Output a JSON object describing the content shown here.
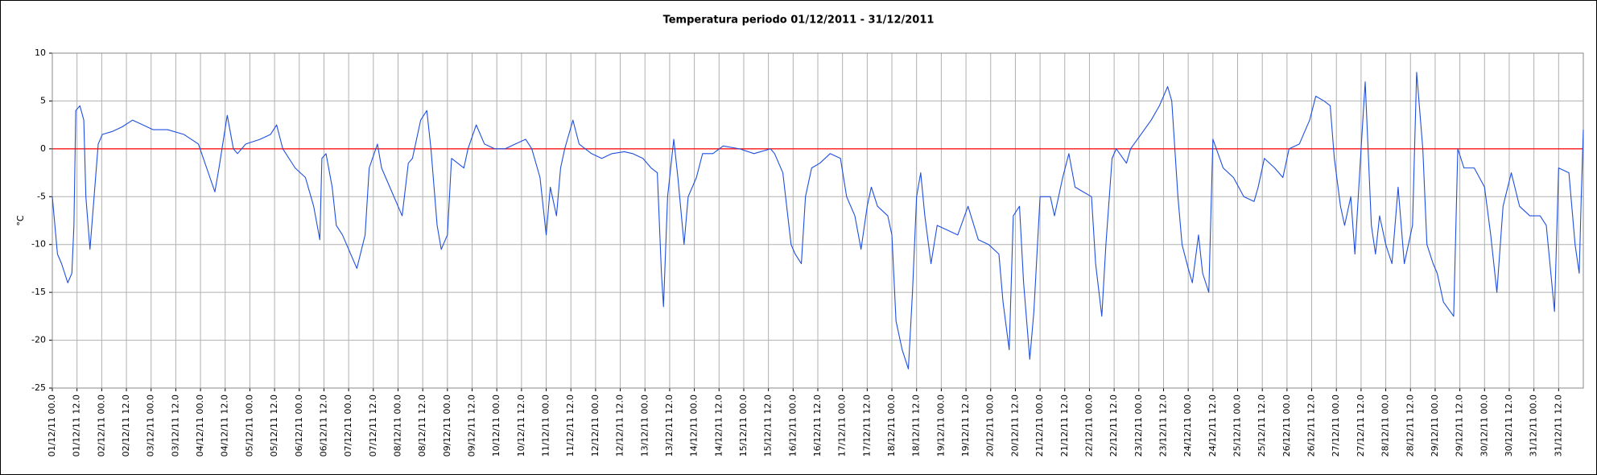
{
  "chart_data": {
    "type": "line",
    "title": "Temperatura periodo 01/12/2011 - 31/12/2011",
    "y_label": "°C",
    "color": "#1f4fe0",
    "grid": true,
    "hline": {
      "value": 0,
      "color": "#ff0000"
    },
    "xlim": [
      0,
      744
    ],
    "ylim": [
      -25,
      10
    ],
    "yticks": [
      -25,
      -20,
      -15,
      -10,
      -5,
      0,
      5,
      10
    ],
    "xticks": [
      {
        "value": 0,
        "label": "01/12/11 00.0"
      },
      {
        "value": 12,
        "label": "01/12/11 12.0"
      },
      {
        "value": 24,
        "label": "02/12/11 00.0"
      },
      {
        "value": 36,
        "label": "02/12/11 12.0"
      },
      {
        "value": 48,
        "label": "03/12/11 00.0"
      },
      {
        "value": 60,
        "label": "03/12/11 12.0"
      },
      {
        "value": 72,
        "label": "04/12/11 00.0"
      },
      {
        "value": 84,
        "label": "04/12/11 12.0"
      },
      {
        "value": 96,
        "label": "05/12/11 00.0"
      },
      {
        "value": 108,
        "label": "05/12/11 12.0"
      },
      {
        "value": 120,
        "label": "06/12/11 00.0"
      },
      {
        "value": 132,
        "label": "06/12/11 12.0"
      },
      {
        "value": 144,
        "label": "07/12/11 00.0"
      },
      {
        "value": 156,
        "label": "07/12/11 12.0"
      },
      {
        "value": 168,
        "label": "08/12/11 00.0"
      },
      {
        "value": 180,
        "label": "08/12/11 12.0"
      },
      {
        "value": 192,
        "label": "09/12/11 00.0"
      },
      {
        "value": 204,
        "label": "09/12/11 12.0"
      },
      {
        "value": 216,
        "label": "10/12/11 00.0"
      },
      {
        "value": 228,
        "label": "10/12/11 12.0"
      },
      {
        "value": 240,
        "label": "11/12/11 00.0"
      },
      {
        "value": 252,
        "label": "11/12/11 12.0"
      },
      {
        "value": 264,
        "label": "12/12/11 00.0"
      },
      {
        "value": 276,
        "label": "12/12/11 12.0"
      },
      {
        "value": 288,
        "label": "13/12/11 00.0"
      },
      {
        "value": 300,
        "label": "13/12/11 12.0"
      },
      {
        "value": 312,
        "label": "14/12/11 00.0"
      },
      {
        "value": 324,
        "label": "14/12/11 12.0"
      },
      {
        "value": 336,
        "label": "15/12/11 00.0"
      },
      {
        "value": 348,
        "label": "15/12/11 12.0"
      },
      {
        "value": 360,
        "label": "16/12/11 00.0"
      },
      {
        "value": 372,
        "label": "16/12/11 12.0"
      },
      {
        "value": 384,
        "label": "17/12/11 00.0"
      },
      {
        "value": 396,
        "label": "17/12/11 12.0"
      },
      {
        "value": 408,
        "label": "18/12/11 00.0"
      },
      {
        "value": 420,
        "label": "18/12/11 12.0"
      },
      {
        "value": 432,
        "label": "19/12/11 00.0"
      },
      {
        "value": 444,
        "label": "19/12/11 12.0"
      },
      {
        "value": 456,
        "label": "20/12/11 00.0"
      },
      {
        "value": 468,
        "label": "20/12/11 12.0"
      },
      {
        "value": 480,
        "label": "21/12/11 00.0"
      },
      {
        "value": 492,
        "label": "21/12/11 12.0"
      },
      {
        "value": 504,
        "label": "22/12/11 00.0"
      },
      {
        "value": 516,
        "label": "22/12/11 12.0"
      },
      {
        "value": 528,
        "label": "23/12/11 00.0"
      },
      {
        "value": 540,
        "label": "23/12/11 12.0"
      },
      {
        "value": 552,
        "label": "24/12/11 00.0"
      },
      {
        "value": 564,
        "label": "24/12/11 12.0"
      },
      {
        "value": 576,
        "label": "25/12/11 00.0"
      },
      {
        "value": 588,
        "label": "25/12/11 12.0"
      },
      {
        "value": 600,
        "label": "26/12/11 00.0"
      },
      {
        "value": 612,
        "label": "26/12/11 12.0"
      },
      {
        "value": 624,
        "label": "27/12/11 00.0"
      },
      {
        "value": 636,
        "label": "27/12/11 12.0"
      },
      {
        "value": 648,
        "label": "28/12/11 00.0"
      },
      {
        "value": 660,
        "label": "28/12/11 12.0"
      },
      {
        "value": 672,
        "label": "29/12/11 00.0"
      },
      {
        "value": 684,
        "label": "29/12/11 12.0"
      },
      {
        "value": 696,
        "label": "30/12/11 00.0"
      },
      {
        "value": 708,
        "label": "30/12/11 12.0"
      },
      {
        "value": 720,
        "label": "31/12/11 00.0"
      },
      {
        "value": 732,
        "label": "31/12/11 12.0"
      }
    ],
    "x": [
      0,
      2.5,
      4.5,
      7.5,
      9.5,
      10.5,
      11.4,
      13.4,
      15.3,
      16.3,
      18.3,
      20.3,
      22.3,
      24.3,
      29,
      34,
      39,
      44,
      49,
      56,
      64,
      71,
      75,
      79,
      81,
      85,
      88,
      90,
      94,
      101,
      106,
      109,
      112,
      118,
      123,
      127,
      130,
      131,
      133,
      136,
      138,
      141,
      143,
      148,
      152,
      154,
      158,
      160,
      164,
      168,
      170,
      173,
      175,
      179,
      182,
      184,
      187,
      189,
      192,
      194,
      197,
      200,
      202,
      206,
      210,
      215,
      220,
      225,
      230,
      233,
      237,
      240,
      242,
      245,
      247,
      249,
      253,
      256,
      262,
      267,
      272,
      278,
      282,
      287,
      291,
      294,
      296,
      297,
      299,
      302,
      304,
      307,
      309,
      313,
      316,
      321,
      326,
      334,
      341,
      349,
      351,
      355,
      359,
      361,
      364,
      366,
      369,
      373,
      378,
      383,
      386,
      390,
      393,
      396,
      398,
      401,
      406,
      408,
      410,
      413,
      416,
      418,
      420,
      422,
      424,
      427,
      430,
      435,
      440,
      445,
      450,
      455,
      460,
      462,
      465,
      467,
      470,
      472,
      475,
      477,
      480,
      485,
      487,
      491,
      494,
      497,
      501,
      505,
      507,
      510,
      512,
      515,
      517,
      522,
      524,
      529,
      534,
      538,
      542,
      544,
      547,
      549,
      552,
      554,
      557,
      559,
      562,
      564,
      569,
      574,
      579,
      584,
      586,
      589,
      594,
      598,
      601,
      606,
      611,
      614,
      618,
      621,
      623,
      626,
      628,
      631,
      633,
      636,
      638,
      641,
      643,
      645,
      648,
      651,
      654,
      657,
      661,
      663,
      666,
      668,
      671,
      673,
      676,
      681,
      683,
      686,
      691,
      696,
      699,
      702,
      705,
      709,
      713,
      718,
      723,
      726,
      730,
      732,
      737,
      740,
      742,
      743,
      744
    ],
    "values": [
      -5,
      -11,
      -12,
      -14,
      -13,
      -8,
      4,
      4.5,
      3,
      -5,
      -10.5,
      -5,
      0.5,
      1.5,
      1.8,
      2.3,
      3,
      2.5,
      2,
      2,
      1.5,
      0.5,
      -2,
      -4.5,
      -2,
      3.5,
      0,
      -0.5,
      0.5,
      1,
      1.5,
      2.5,
      0,
      -2,
      -3,
      -6,
      -9.5,
      -1,
      -0.5,
      -4,
      -8,
      -9,
      -10,
      -12.5,
      -9,
      -2,
      0.5,
      -2,
      -4,
      -6,
      -7,
      -1.5,
      -1,
      3,
      4,
      0,
      -8,
      -10.5,
      -9,
      -1,
      -1.5,
      -2,
      0,
      2.5,
      0.5,
      0,
      0,
      0.5,
      1,
      0,
      -3,
      -9,
      -4,
      -7,
      -2,
      0,
      3,
      0.5,
      -0.5,
      -1,
      -0.5,
      -0.3,
      -0.5,
      -1,
      -2,
      -2.5,
      -13,
      -16.5,
      -5,
      1,
      -3,
      -10,
      -5,
      -3,
      -0.5,
      -0.5,
      0.3,
      0,
      -0.5,
      0,
      -0.5,
      -2.5,
      -10,
      -11,
      -12,
      -5,
      -2,
      -1.5,
      -0.5,
      -1,
      -5,
      -7,
      -10.5,
      -6,
      -4,
      -6,
      -7,
      -9,
      -18,
      -21,
      -23,
      -15,
      -5,
      -2.5,
      -7,
      -12,
      -8,
      -8.5,
      -9,
      -6,
      -9.5,
      -10,
      -11,
      -16,
      -21,
      -7,
      -6,
      -14,
      -22,
      -17,
      -5,
      -5,
      -7,
      -3,
      -0.5,
      -4,
      -4.5,
      -5,
      -12,
      -17.5,
      -10,
      -1,
      0,
      -1.5,
      0,
      1.5,
      3,
      4.5,
      6.5,
      5,
      -5,
      -10,
      -12.5,
      -14,
      -9,
      -13,
      -15,
      1,
      -2,
      -3,
      -5,
      -5.5,
      -4,
      -1,
      -2,
      -3,
      0,
      0.5,
      3,
      5.5,
      5,
      4.5,
      -1,
      -6,
      -8,
      -5,
      -11,
      0,
      7,
      -8,
      -11,
      -7,
      -10,
      -12,
      -4,
      -12,
      -8,
      8,
      0,
      -10,
      -12,
      -13,
      -16,
      -17.5,
      0,
      -2,
      -2,
      -4,
      -9,
      -15,
      -6,
      -2.5,
      -6,
      -7,
      -7,
      -8,
      -17,
      -2,
      -2.5,
      -10,
      -13,
      -5,
      2
    ]
  }
}
